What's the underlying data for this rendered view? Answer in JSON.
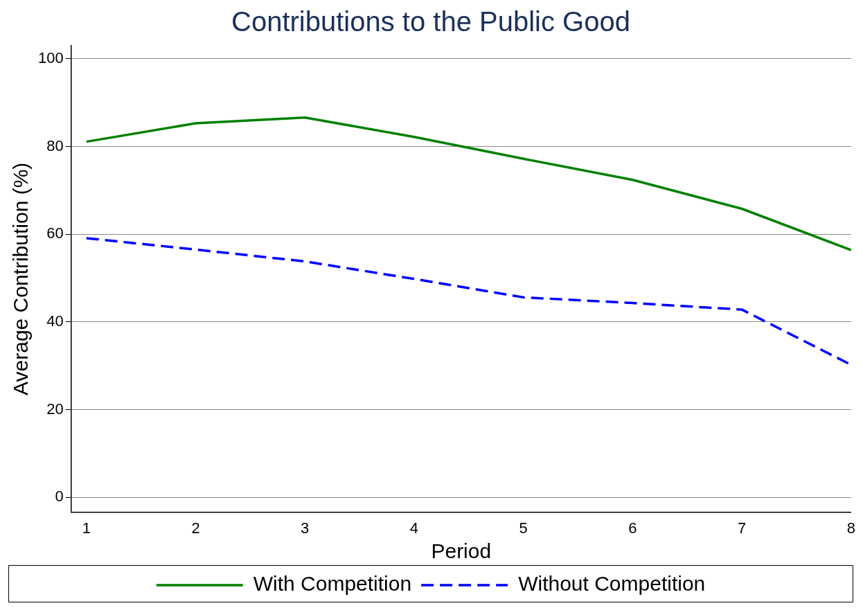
{
  "chart_data": {
    "type": "line",
    "title": "Contributions to the Public Good",
    "xlabel": "Period",
    "ylabel": "Average Contribution (%)",
    "x": [
      1,
      2,
      3,
      4,
      5,
      6,
      7,
      8
    ],
    "series": [
      {
        "name": "With Competition",
        "color": "#008000",
        "values": [
          81.1,
          85.3,
          86.6,
          82.2,
          77.2,
          72.4,
          65.8,
          56.4
        ],
        "line_style": "solid"
      },
      {
        "name": "Without Competition",
        "color": "#0000ff",
        "values": [
          59.1,
          56.5,
          53.8,
          49.8,
          45.6,
          44.3,
          42.8,
          30.2
        ],
        "line_style": "dashed"
      }
    ],
    "xlim": [
      0.86,
      8
    ],
    "xticks": [
      1,
      2,
      3,
      4,
      5,
      6,
      7,
      8
    ],
    "ylim": [
      -3.4,
      103
    ],
    "yticks": [
      0,
      20,
      40,
      60,
      80,
      100
    ],
    "grid": "y",
    "legend": "bottom",
    "marker": "none"
  }
}
